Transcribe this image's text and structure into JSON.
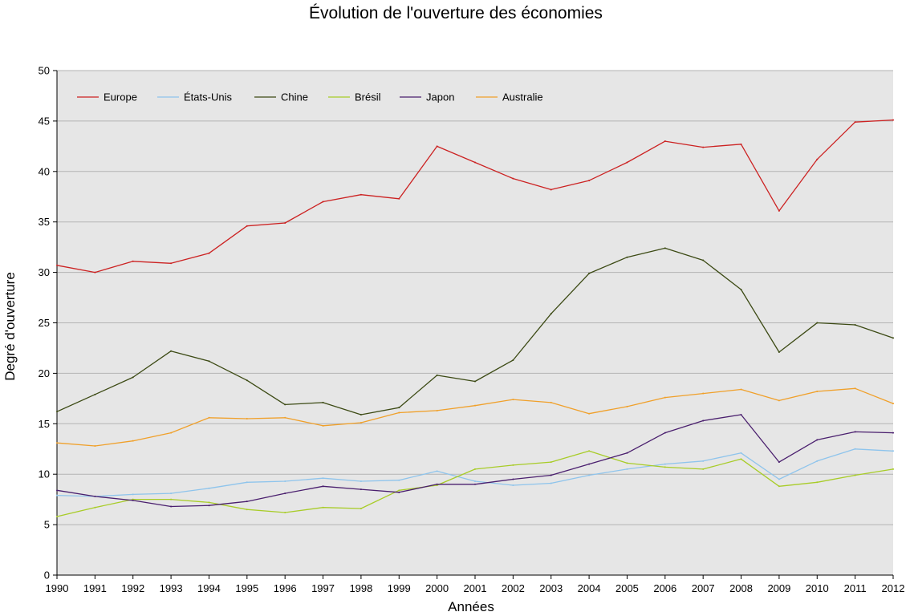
{
  "chart_data": {
    "type": "line",
    "title": "Évolution de l'ouverture des économies",
    "xlabel": "Années",
    "ylabel": "Degré d'ouverture",
    "ylim": [
      0,
      50
    ],
    "yticks": [
      0,
      5,
      10,
      15,
      20,
      25,
      30,
      35,
      40,
      45,
      50
    ],
    "grid": true,
    "legend_position": "top-left",
    "plot_background": "#e6e6e6",
    "gridline_color": "#b3b3b3",
    "x": [
      "1990",
      "1991",
      "1992",
      "1993",
      "1994",
      "1995",
      "1996",
      "1997",
      "1998",
      "1999",
      "2000",
      "2001",
      "2002",
      "2003",
      "2004",
      "2005",
      "2006",
      "2007",
      "2008",
      "2009",
      "2010",
      "2011",
      "2012"
    ],
    "series": [
      {
        "name": "Europe",
        "color": "#cc2222",
        "values": [
          30.7,
          30.0,
          31.1,
          30.9,
          31.9,
          34.6,
          34.9,
          37.0,
          37.7,
          37.3,
          42.5,
          40.9,
          39.3,
          38.2,
          39.1,
          40.9,
          43.0,
          42.4,
          42.7,
          36.1,
          41.2,
          44.9,
          45.1
        ]
      },
      {
        "name": "États-Unis",
        "color": "#8ec4ec",
        "values": [
          7.9,
          7.8,
          8.0,
          8.1,
          8.6,
          9.2,
          9.3,
          9.6,
          9.3,
          9.4,
          10.3,
          9.3,
          8.9,
          9.1,
          9.9,
          10.5,
          11.0,
          11.3,
          12.1,
          9.5,
          11.3,
          12.5,
          12.3
        ]
      },
      {
        "name": "Chine",
        "color": "#3c4a14",
        "values": [
          16.2,
          17.9,
          19.6,
          22.2,
          21.2,
          19.3,
          16.9,
          17.1,
          15.9,
          16.6,
          19.8,
          19.2,
          21.3,
          25.9,
          29.9,
          31.5,
          32.4,
          31.2,
          28.3,
          22.1,
          25.0,
          24.8,
          23.5
        ]
      },
      {
        "name": "Brésil",
        "color": "#a8cc28",
        "values": [
          5.8,
          6.7,
          7.5,
          7.5,
          7.2,
          6.5,
          6.2,
          6.7,
          6.6,
          8.4,
          8.9,
          10.5,
          10.9,
          11.2,
          12.3,
          11.1,
          10.7,
          10.5,
          11.5,
          8.8,
          9.2,
          9.9,
          10.5
        ]
      },
      {
        "name": "Japon",
        "color": "#4a1f6e",
        "values": [
          8.4,
          7.8,
          7.4,
          6.8,
          6.9,
          7.3,
          8.1,
          8.8,
          8.5,
          8.2,
          9.0,
          9.0,
          9.5,
          9.9,
          11.0,
          12.1,
          14.1,
          15.3,
          15.9,
          11.2,
          13.4,
          14.2,
          14.1
        ]
      },
      {
        "name": "Australie",
        "color": "#f0a02a",
        "values": [
          13.1,
          12.8,
          13.3,
          14.1,
          15.6,
          15.5,
          15.6,
          14.8,
          15.1,
          16.1,
          16.3,
          16.8,
          17.4,
          17.1,
          16.0,
          16.7,
          17.6,
          18.0,
          18.4,
          17.3,
          18.2,
          18.5,
          17.0
        ]
      }
    ]
  }
}
